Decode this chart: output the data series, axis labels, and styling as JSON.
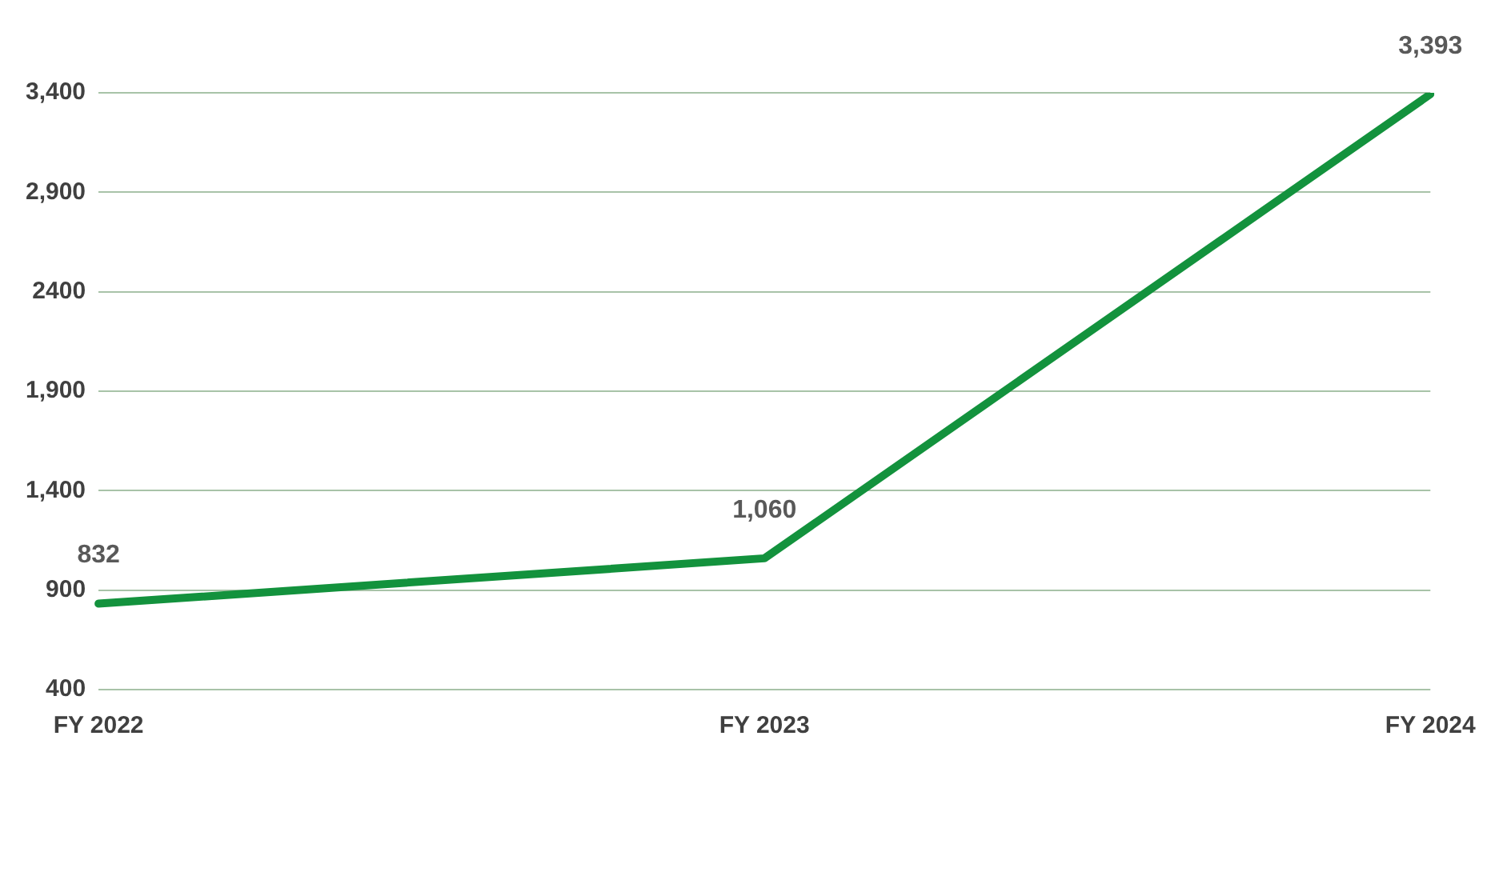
{
  "chart_data": {
    "type": "line",
    "categories": [
      "FY 2022",
      "FY 2023",
      "FY 2024"
    ],
    "series": [
      {
        "color": "#13923d",
        "values": [
          832,
          1060,
          3393
        ],
        "value_labels": [
          "832",
          "1,060",
          "3,393"
        ]
      }
    ],
    "ylim": [
      400,
      3400
    ],
    "yticks": [
      400,
      {
        "value": 900,
        "label": "900"
      },
      {
        "value": 1400,
        "label": "1,400"
      },
      {
        "value": 1900,
        "label": "1,900"
      },
      2400,
      {
        "value": 2900,
        "label": "2,900"
      },
      {
        "value": 3400,
        "label": "3,400"
      }
    ],
    "grid": "y",
    "marker": "none",
    "line_style": "solid"
  }
}
